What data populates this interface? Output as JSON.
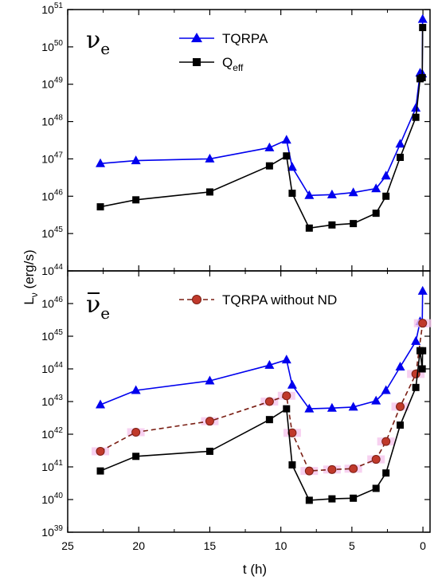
{
  "chart_data": [
    {
      "type": "line",
      "panel_label": "ν",
      "panel_label_sub": "e",
      "panel_label_bar": false,
      "xlabel": "t (h)",
      "ylabel": "L",
      "ylabel_sub": "ν",
      "ylabel_unit": " (erg/s)",
      "xlim": [
        25,
        -0.5
      ],
      "ylim_exp": [
        44,
        51
      ],
      "yscale": "log",
      "x_ticks": [
        "25",
        "20",
        "15",
        "10",
        "5",
        "0"
      ],
      "y_tick_exps": [
        "44",
        "45",
        "46",
        "47",
        "48",
        "49",
        "50",
        "51"
      ],
      "series": [
        {
          "name": "TQRPA",
          "name_sub": "",
          "color": "#0000ee",
          "marker": "triangle",
          "dashed": false,
          "x": [
            22.7,
            20.2,
            15.0,
            10.8,
            9.6,
            9.2,
            8.0,
            6.4,
            4.9,
            3.3,
            2.6,
            1.6,
            0.5,
            0.2,
            0.05,
            0.02
          ],
          "y": [
            7.5e+46,
            9e+46,
            1e+47,
            2e+47,
            3.2e+47,
            6e+46,
            1.05e+46,
            1.1e+46,
            1.25e+46,
            1.6e+46,
            3.5e+46,
            2.5e+47,
            2.3e+48,
            2e+49,
            1.9e+49,
            5.5e+50
          ]
        },
        {
          "name": "Q",
          "name_sub": "eff",
          "color": "#000000",
          "marker": "square",
          "dashed": false,
          "x": [
            22.7,
            20.2,
            15.0,
            10.8,
            9.6,
            9.2,
            8.0,
            6.4,
            4.9,
            3.3,
            2.6,
            1.6,
            0.5,
            0.2,
            0.05,
            0.02
          ],
          "y": [
            5.2e+45,
            8e+45,
            1.3e+46,
            6.5e+46,
            1.2e+47,
            1.2e+46,
            1.4e+45,
            1.7e+45,
            1.85e+45,
            3.5e+45,
            1e+46,
            1.1e+47,
            1.3e+48,
            1.4e+49,
            1.5e+49,
            3.3e+50
          ]
        }
      ]
    },
    {
      "type": "line",
      "panel_label": "ν",
      "panel_label_sub": "e",
      "panel_label_bar": true,
      "xlabel": "t (h)",
      "xlim": [
        25,
        -0.5
      ],
      "ylim_exp": [
        39,
        47
      ],
      "yscale": "log",
      "x_ticks": [
        "25",
        "20",
        "15",
        "10",
        "5",
        "0"
      ],
      "y_tick_exps": [
        "39",
        "40",
        "41",
        "42",
        "43",
        "44",
        "45",
        "46"
      ],
      "series": [
        {
          "name": "",
          "name_sub": "",
          "in_legend": false,
          "color": "#0000ee",
          "marker": "triangle",
          "dashed": false,
          "x": [
            22.7,
            20.2,
            15.0,
            10.8,
            9.6,
            9.2,
            8.0,
            6.4,
            4.9,
            3.3,
            2.6,
            1.6,
            0.5,
            0.2,
            0.05,
            0.02
          ],
          "y": [
            8e+42,
            2.2e+43,
            4.3e+43,
            1.3e+44,
            1.9e+44,
            3.2e+43,
            6e+42,
            6.3e+42,
            6.8e+42,
            1.05e+43,
            2.2e+43,
            1.15e+44,
            7e+44,
            2.8e+45,
            2.5e+45,
            2.4e+46
          ]
        },
        {
          "name": "TQRPA without ND",
          "name_sub": "",
          "in_legend": true,
          "color": "#c0392b",
          "edge": "#7a1f14",
          "halo": "#f5c6ec",
          "marker": "circle",
          "dashed": true,
          "x": [
            22.7,
            20.2,
            15.0,
            10.8,
            9.6,
            9.2,
            8.0,
            6.4,
            4.9,
            3.3,
            2.6,
            1.6,
            0.5,
            0.02
          ],
          "y": [
            3e+41,
            1.15e+42,
            2.5e+42,
            1e+43,
            1.5e+43,
            1.1e+42,
            7.5e+40,
            8.3e+40,
            8.8e+40,
            1.7e+41,
            6e+41,
            7e+42,
            7e+43,
            2.5e+45
          ]
        },
        {
          "name": "",
          "name_sub": "",
          "in_legend": false,
          "color": "#000000",
          "marker": "square",
          "dashed": false,
          "x": [
            22.7,
            20.2,
            15.0,
            10.8,
            9.6,
            9.2,
            8.0,
            6.4,
            4.9,
            3.3,
            2.6,
            1.6,
            0.5,
            0.2,
            0.05,
            0.02
          ],
          "y": [
            7.5e+40,
            2.1e+41,
            3e+41,
            2.8e+42,
            6e+42,
            1.15e+41,
            9.5e+39,
            1.05e+40,
            1.1e+40,
            2.2e+40,
            6.5e+40,
            1.9e+42,
            2.7e+43,
            3.6e+44,
            1e+44,
            3.6e+44
          ]
        }
      ]
    }
  ]
}
